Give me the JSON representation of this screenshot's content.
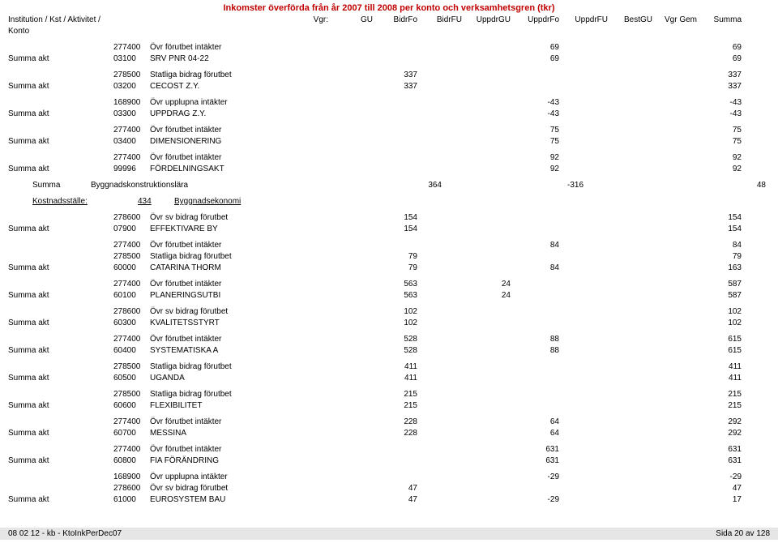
{
  "title": "Inkomster överförda från år 2007 till 2008 per konto och verksamhetsgren (tkr)",
  "header": {
    "label": "Institution / Kst / Aktivitet / Konto",
    "vgr": "Vgr:",
    "gu": "GU",
    "bidrfo": "BidrFo",
    "bidrfu": "BidrFU",
    "uppdrgu": "UppdrGU",
    "uppdrfo": "UppdrFo",
    "uppdrfu": "UppdrFU",
    "bestgu": "BestGU",
    "vgrgem": "Vgr Gem",
    "summa": "Summa"
  },
  "groups": [
    {
      "rows": [
        {
          "label": "",
          "code": "277400",
          "desc": "Övr förutbet intäkter",
          "uf": "69",
          "sum": "69"
        },
        {
          "label": "Summa akt",
          "code": "03100",
          "desc": "SRV PNR 04-22",
          "uf": "69",
          "sum": "69"
        }
      ]
    },
    {
      "rows": [
        {
          "label": "",
          "code": "278500",
          "desc": "Statliga bidrag förutbet",
          "bf": "337",
          "sum": "337"
        },
        {
          "label": "Summa akt",
          "code": "03200",
          "desc": "CECOST Z.Y.",
          "bf": "337",
          "sum": "337"
        }
      ]
    },
    {
      "rows": [
        {
          "label": "",
          "code": "168900",
          "desc": "Övr upplupna intäkter",
          "uf": "-43",
          "sum": "-43"
        },
        {
          "label": "Summa akt",
          "code": "03300",
          "desc": "UPPDRAG Z.Y.",
          "uf": "-43",
          "sum": "-43"
        }
      ]
    },
    {
      "rows": [
        {
          "label": "",
          "code": "277400",
          "desc": "Övr förutbet intäkter",
          "uf": "75",
          "sum": "75"
        },
        {
          "label": "Summa akt",
          "code": "03400",
          "desc": "DIMENSIONERING",
          "uf": "75",
          "sum": "75"
        }
      ]
    },
    {
      "rows": [
        {
          "label": "",
          "code": "277400",
          "desc": "Övr förutbet intäkter",
          "uf": "92",
          "sum": "92"
        },
        {
          "label": "Summa akt",
          "code": "99996",
          "desc": "FÖRDELNINGSAKT",
          "uf": "92",
          "sum": "92"
        }
      ]
    }
  ],
  "summa_block": {
    "label": "Summa",
    "desc": "Byggnadskonstruktionslära",
    "bf": "364",
    "uf": "-316",
    "sum": "48"
  },
  "kst": {
    "label": "Kostnadsställe:",
    "code": "434",
    "name": "Byggnadsekonomi"
  },
  "groups2": [
    {
      "rows": [
        {
          "label": "",
          "code": "278600",
          "desc": "Övr sv bidrag förutbet",
          "bf": "154",
          "sum": "154"
        },
        {
          "label": "Summa akt",
          "code": "07900",
          "desc": "EFFEKTIVARE BY",
          "bf": "154",
          "sum": "154"
        }
      ]
    },
    {
      "rows": [
        {
          "label": "",
          "code": "277400",
          "desc": "Övr förutbet intäkter",
          "uf": "84",
          "sum": "84"
        },
        {
          "label": "",
          "code": "278500",
          "desc": "Statliga bidrag förutbet",
          "bf": "79",
          "sum": "79"
        },
        {
          "label": "Summa akt",
          "code": "60000",
          "desc": "CATARINA THORM",
          "bf": "79",
          "uf": "84",
          "sum": "163"
        }
      ]
    },
    {
      "rows": [
        {
          "label": "",
          "code": "277400",
          "desc": "Övr förutbet intäkter",
          "bf": "563",
          "ug": "24",
          "sum": "587"
        },
        {
          "label": "Summa akt",
          "code": "60100",
          "desc": "PLANERINGSUTBI",
          "bf": "563",
          "ug": "24",
          "sum": "587"
        }
      ]
    },
    {
      "rows": [
        {
          "label": "",
          "code": "278600",
          "desc": "Övr sv bidrag förutbet",
          "bf": "102",
          "sum": "102"
        },
        {
          "label": "Summa akt",
          "code": "60300",
          "desc": "KVALITETSSTYRT",
          "bf": "102",
          "sum": "102"
        }
      ]
    },
    {
      "rows": [
        {
          "label": "",
          "code": "277400",
          "desc": "Övr förutbet intäkter",
          "bf": "528",
          "uf": "88",
          "sum": "615"
        },
        {
          "label": "Summa akt",
          "code": "60400",
          "desc": "SYSTEMATISKA A",
          "bf": "528",
          "uf": "88",
          "sum": "615"
        }
      ]
    },
    {
      "rows": [
        {
          "label": "",
          "code": "278500",
          "desc": "Statliga bidrag förutbet",
          "bf": "411",
          "sum": "411"
        },
        {
          "label": "Summa akt",
          "code": "60500",
          "desc": "UGANDA",
          "bf": "411",
          "sum": "411"
        }
      ]
    },
    {
      "rows": [
        {
          "label": "",
          "code": "278500",
          "desc": "Statliga bidrag förutbet",
          "bf": "215",
          "sum": "215"
        },
        {
          "label": "Summa akt",
          "code": "60600",
          "desc": "FLEXIBILITET",
          "bf": "215",
          "sum": "215"
        }
      ]
    },
    {
      "rows": [
        {
          "label": "",
          "code": "277400",
          "desc": "Övr förutbet intäkter",
          "bf": "228",
          "uf": "64",
          "sum": "292"
        },
        {
          "label": "Summa akt",
          "code": "60700",
          "desc": "MESSINA",
          "bf": "228",
          "uf": "64",
          "sum": "292"
        }
      ]
    },
    {
      "rows": [
        {
          "label": "",
          "code": "277400",
          "desc": "Övr förutbet intäkter",
          "uf": "631",
          "sum": "631"
        },
        {
          "label": "Summa akt",
          "code": "60800",
          "desc": "FIA FÖRÄNDRING",
          "uf": "631",
          "sum": "631"
        }
      ]
    },
    {
      "rows": [
        {
          "label": "",
          "code": "168900",
          "desc": "Övr upplupna intäkter",
          "uf": "-29",
          "sum": "-29"
        },
        {
          "label": "",
          "code": "278600",
          "desc": "Övr sv bidrag förutbet",
          "bf": "47",
          "sum": "47"
        },
        {
          "label": "Summa akt",
          "code": "61000",
          "desc": "EUROSYSTEM BAU",
          "bf": "47",
          "uf": "-29",
          "sum": "17"
        }
      ]
    }
  ],
  "footer": {
    "left": "08 02 12 - kb - KtoInkPerDec07",
    "right": "Sida 20 av 128"
  }
}
